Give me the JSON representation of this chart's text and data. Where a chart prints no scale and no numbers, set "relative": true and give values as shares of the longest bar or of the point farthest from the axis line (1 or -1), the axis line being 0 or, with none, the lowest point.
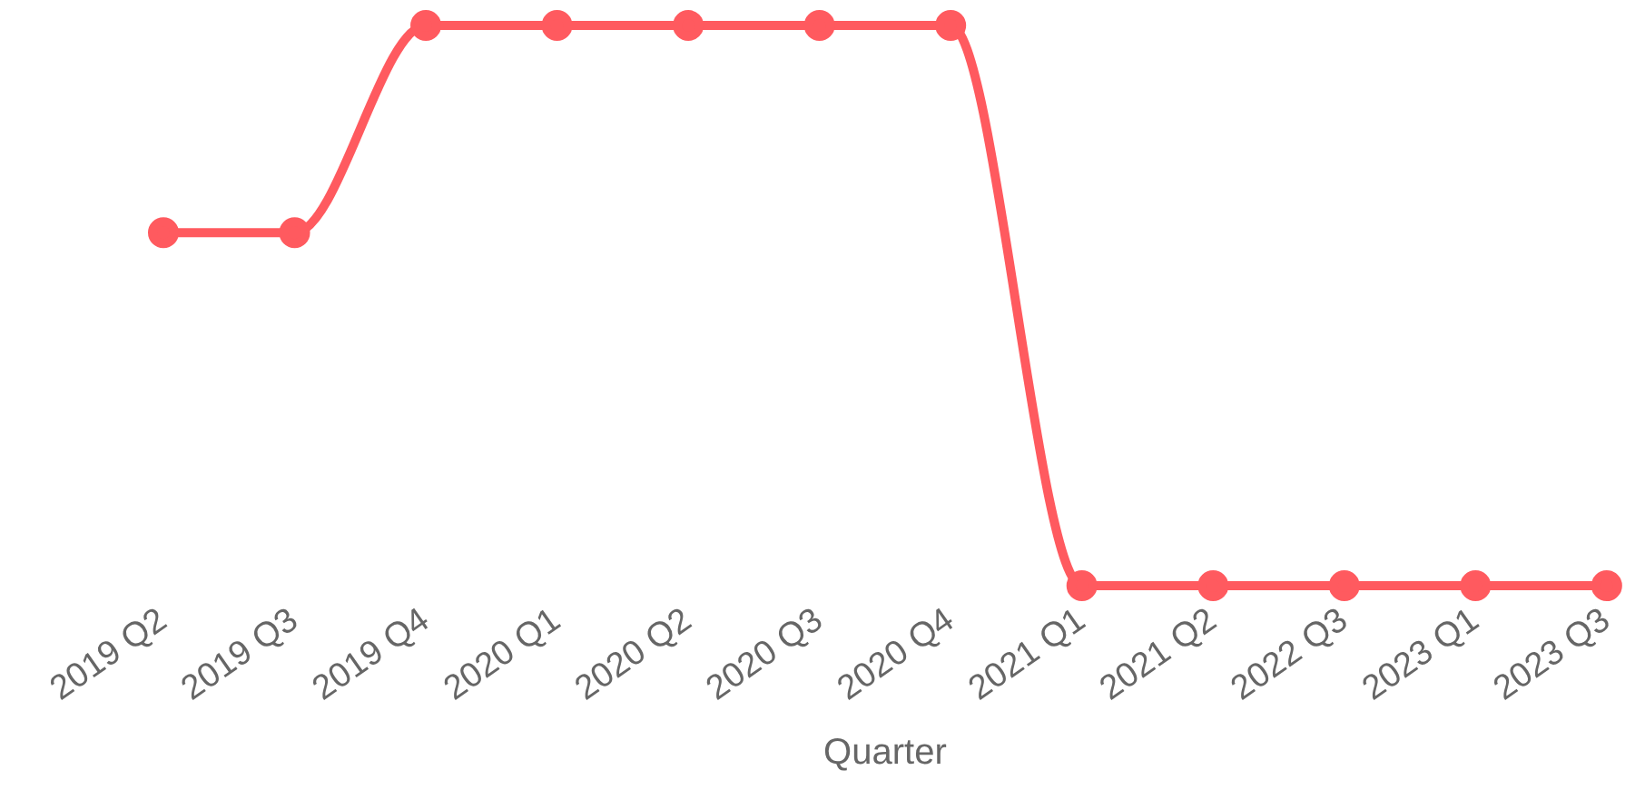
{
  "chart_data": {
    "type": "line",
    "xlabel": "Quarter",
    "categories": [
      "2019 Q2",
      "2019 Q3",
      "2019 Q4",
      "2020 Q1",
      "2020 Q2",
      "2020 Q3",
      "2020 Q4",
      "2021 Q1",
      "2021 Q2",
      "2022 Q3",
      "2023 Q1",
      "2023 Q3"
    ],
    "values": [
      0.63,
      0.63,
      1,
      1,
      1,
      1,
      1,
      0,
      0,
      0,
      0,
      0
    ],
    "color": "#ff5a5f",
    "relative": true,
    "marker": "circle"
  }
}
